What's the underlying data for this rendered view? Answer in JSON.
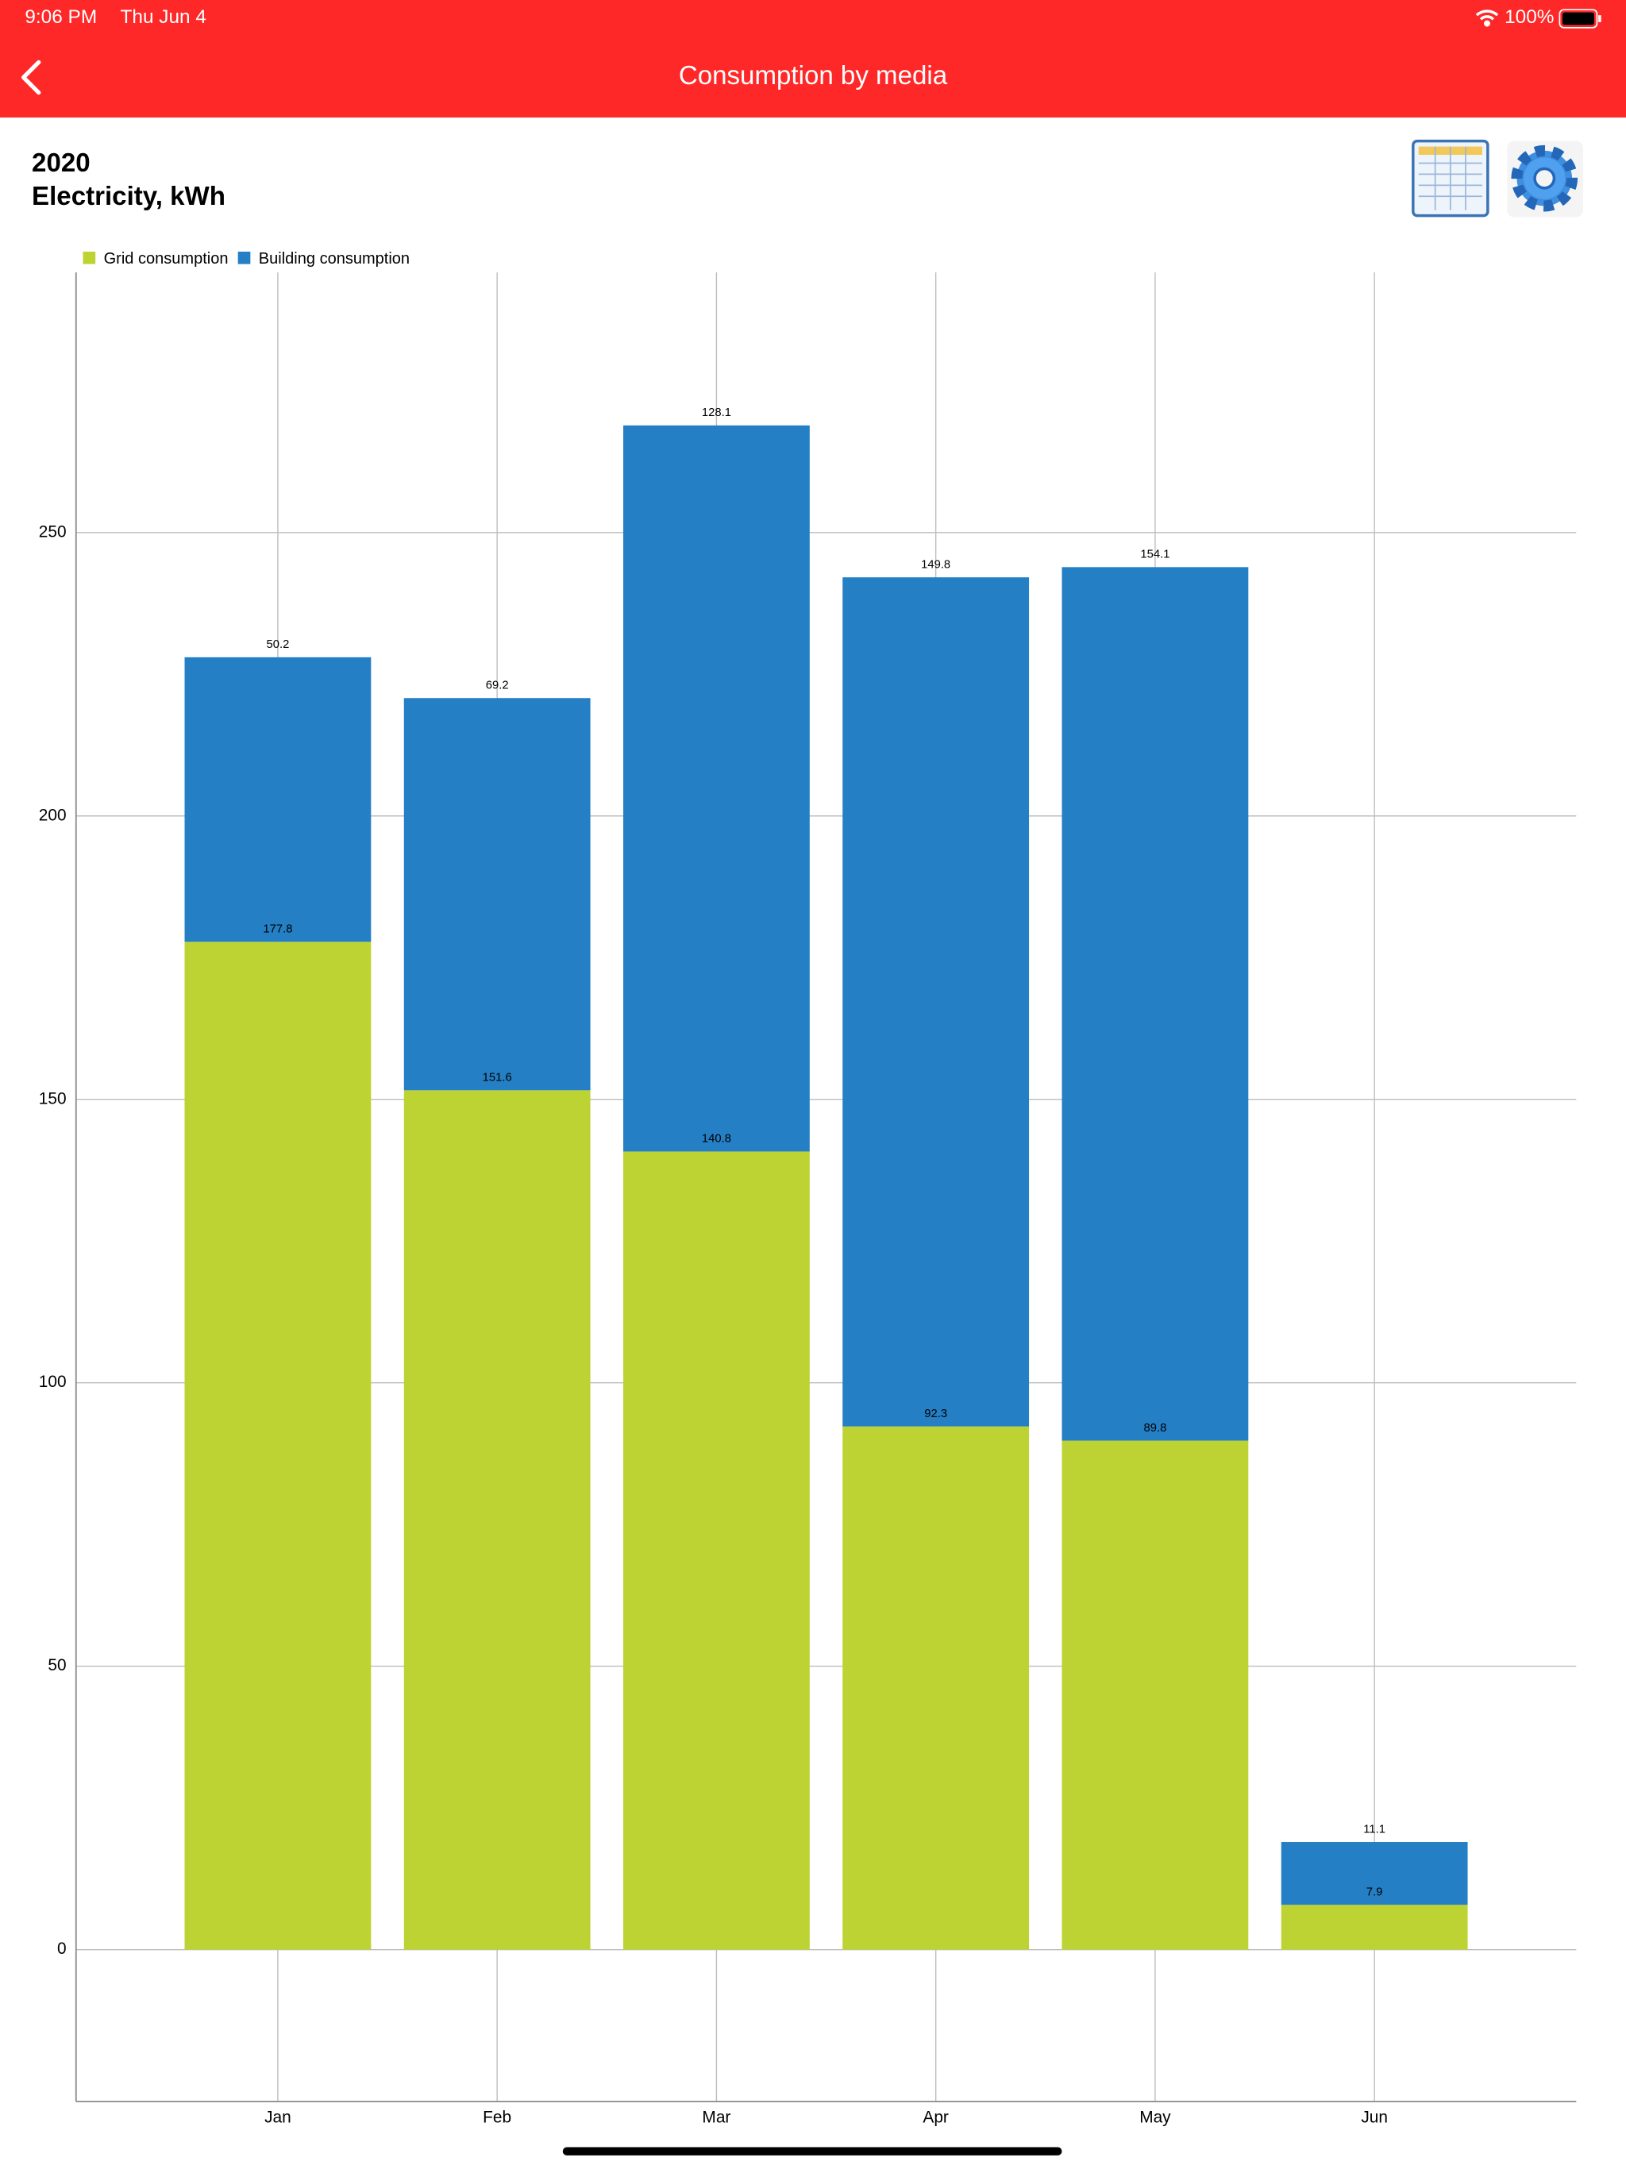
{
  "status_bar": {
    "time": "9:06 PM",
    "date": "Thu Jun 4",
    "battery": "100%"
  },
  "nav_bar": {
    "title": "Consumption by media"
  },
  "chart_data": {
    "type": "bar",
    "stacked": true,
    "title": "2020",
    "subtitle": "Electricity, kWh",
    "categories": [
      "Jan",
      "Feb",
      "Mar",
      "Apr",
      "May",
      "Jun"
    ],
    "series": [
      {
        "name": "Grid consumption",
        "color": "#bdd333",
        "values": [
          177.8,
          151.6,
          140.8,
          92.3,
          89.8,
          7.9
        ]
      },
      {
        "name": "Building consumption",
        "color": "#247fc5",
        "values": [
          50.2,
          69.2,
          128.1,
          149.8,
          154.1,
          11.1
        ]
      }
    ],
    "ylim": [
      -26.8,
      295.9
    ],
    "yticks": [
      0,
      50,
      100,
      150,
      200,
      250
    ],
    "grid": true,
    "legend": "top-left"
  }
}
